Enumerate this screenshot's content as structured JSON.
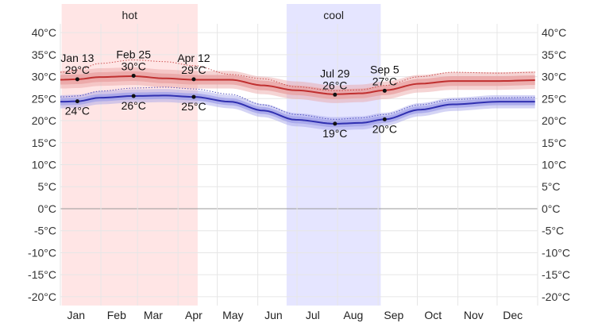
{
  "chart_data": {
    "type": "line",
    "x_unit": "day of year",
    "months": [
      "Jan",
      "Feb",
      "Mar",
      "Apr",
      "May",
      "Jun",
      "Jul",
      "Aug",
      "Sep",
      "Oct",
      "Nov",
      "Dec"
    ],
    "ylim": [
      -22,
      42
    ],
    "y_ticks": [
      40,
      35,
      30,
      25,
      20,
      15,
      10,
      5,
      0,
      -5,
      -10,
      -15,
      -20
    ],
    "y_tick_labels": [
      "40°C",
      "35°C",
      "30°C",
      "25°C",
      "20°C",
      "15°C",
      "10°C",
      "5°C",
      "0°C",
      "-5°C",
      "-10°C",
      "-15°C",
      "-20°C"
    ],
    "grid": true,
    "seasons": [
      {
        "label": "hot",
        "start_day": 1,
        "end_day": 105,
        "color": "#ffe5e5"
      },
      {
        "label": "cool",
        "start_day": 173,
        "end_day": 245,
        "color": "#e5e5ff"
      }
    ],
    "series": [
      {
        "key": "high",
        "color": "#c03030",
        "band_color": "#e8a0a0",
        "days": [
          1,
          13,
          30,
          56,
          80,
          102,
          130,
          155,
          180,
          210,
          230,
          248,
          275,
          300,
          335,
          365
        ],
        "values": [
          29.3,
          29.4,
          29.9,
          30.1,
          29.6,
          29.3,
          29.3,
          28.0,
          26.9,
          26.0,
          26.2,
          26.9,
          28.4,
          29.0,
          29.0,
          29.2
        ],
        "band_inner": 1.1,
        "band_outer": 2.0,
        "dotted_max": [
          31.0,
          31.5,
          33.0,
          33.8,
          33.4,
          32.5,
          30.5,
          29.5,
          27.7,
          26.8,
          27.0,
          28.0,
          30.0,
          31.0,
          30.8,
          31.0
        ]
      },
      {
        "key": "low",
        "color": "#3030b0",
        "band_color": "#a0a0e8",
        "days": [
          1,
          13,
          30,
          56,
          80,
          102,
          130,
          155,
          180,
          210,
          230,
          248,
          275,
          300,
          335,
          365
        ],
        "values": [
          24.3,
          24.4,
          25.2,
          25.6,
          25.7,
          25.4,
          24.3,
          22.3,
          20.2,
          19.3,
          19.5,
          20.3,
          22.5,
          23.7,
          24.3,
          24.3
        ],
        "band_inner": 0.8,
        "band_outer": 1.5,
        "dotted_max": [
          25.4,
          25.6,
          26.7,
          27.4,
          27.6,
          27.2,
          26.0,
          23.6,
          21.4,
          20.3,
          20.6,
          21.4,
          23.6,
          24.8,
          25.2,
          25.3
        ]
      }
    ],
    "annotations": [
      {
        "day": 13,
        "value": 29.4,
        "line1": "Jan 13",
        "line2": "29°C",
        "pos": "above"
      },
      {
        "day": 56,
        "value": 30.2,
        "line1": "Feb 25",
        "line2": "30°C",
        "pos": "above"
      },
      {
        "day": 102,
        "value": 29.4,
        "line1": "Apr 12",
        "line2": "29°C",
        "pos": "above"
      },
      {
        "day": 210,
        "value": 25.9,
        "line1": "Jul 29",
        "line2": "26°C",
        "pos": "above"
      },
      {
        "day": 248,
        "value": 26.8,
        "line1": "Sep 5",
        "line2": "27°C",
        "pos": "above"
      },
      {
        "day": 13,
        "value": 24.4,
        "line1": "24°C",
        "line2": "",
        "pos": "below"
      },
      {
        "day": 56,
        "value": 25.6,
        "line1": "26°C",
        "line2": "",
        "pos": "below"
      },
      {
        "day": 102,
        "value": 25.4,
        "line1": "25°C",
        "line2": "",
        "pos": "below"
      },
      {
        "day": 210,
        "value": 19.3,
        "line1": "19°C",
        "line2": "",
        "pos": "below"
      },
      {
        "day": 248,
        "value": 20.3,
        "line1": "20°C",
        "line2": "",
        "pos": "below"
      }
    ]
  }
}
